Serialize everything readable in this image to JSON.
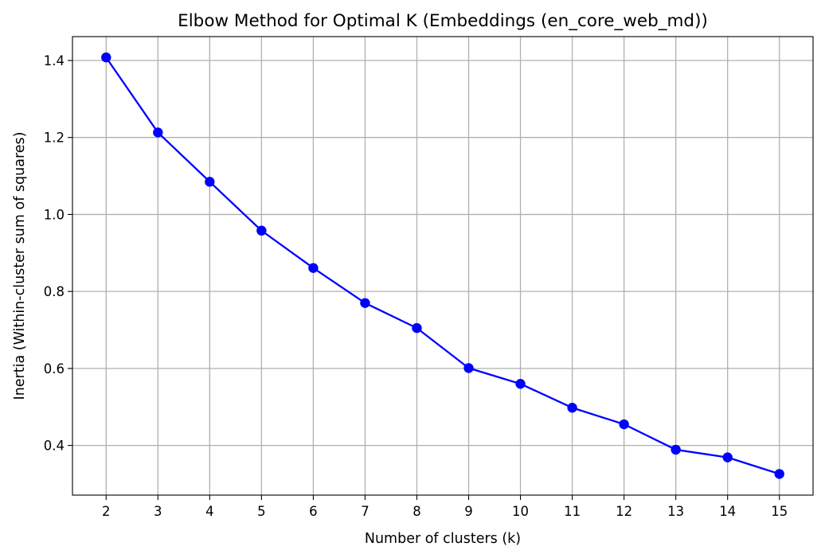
{
  "chart_data": {
    "type": "line",
    "title": "Elbow Method for Optimal K (Embeddings (en_core_web_md))",
    "xlabel": "Number of clusters (k)",
    "ylabel": "Inertia (Within-cluster sum of squares)",
    "x": [
      2,
      3,
      4,
      5,
      6,
      7,
      8,
      9,
      10,
      11,
      12,
      13,
      14,
      15
    ],
    "x_tick_labels": [
      "2",
      "3",
      "4",
      "5",
      "6",
      "7",
      "8",
      "9",
      "10",
      "11",
      "12",
      "13",
      "14",
      "15"
    ],
    "y_ticks": [
      0.4,
      0.6,
      0.8,
      1.0,
      1.2,
      1.4
    ],
    "y_tick_labels": [
      "0.4",
      "0.6",
      "0.8",
      "1.0",
      "1.2",
      "1.4"
    ],
    "xlim": [
      1.35,
      15.65
    ],
    "ylim": [
      0.271,
      1.462
    ],
    "grid": true,
    "series": [
      {
        "values": [
          1.408,
          1.213,
          1.085,
          0.958,
          0.861,
          0.77,
          0.705,
          0.601,
          0.56,
          0.498,
          0.455,
          0.389,
          0.369,
          0.326
        ],
        "color": "#0000ff",
        "marker": "circle"
      }
    ]
  }
}
